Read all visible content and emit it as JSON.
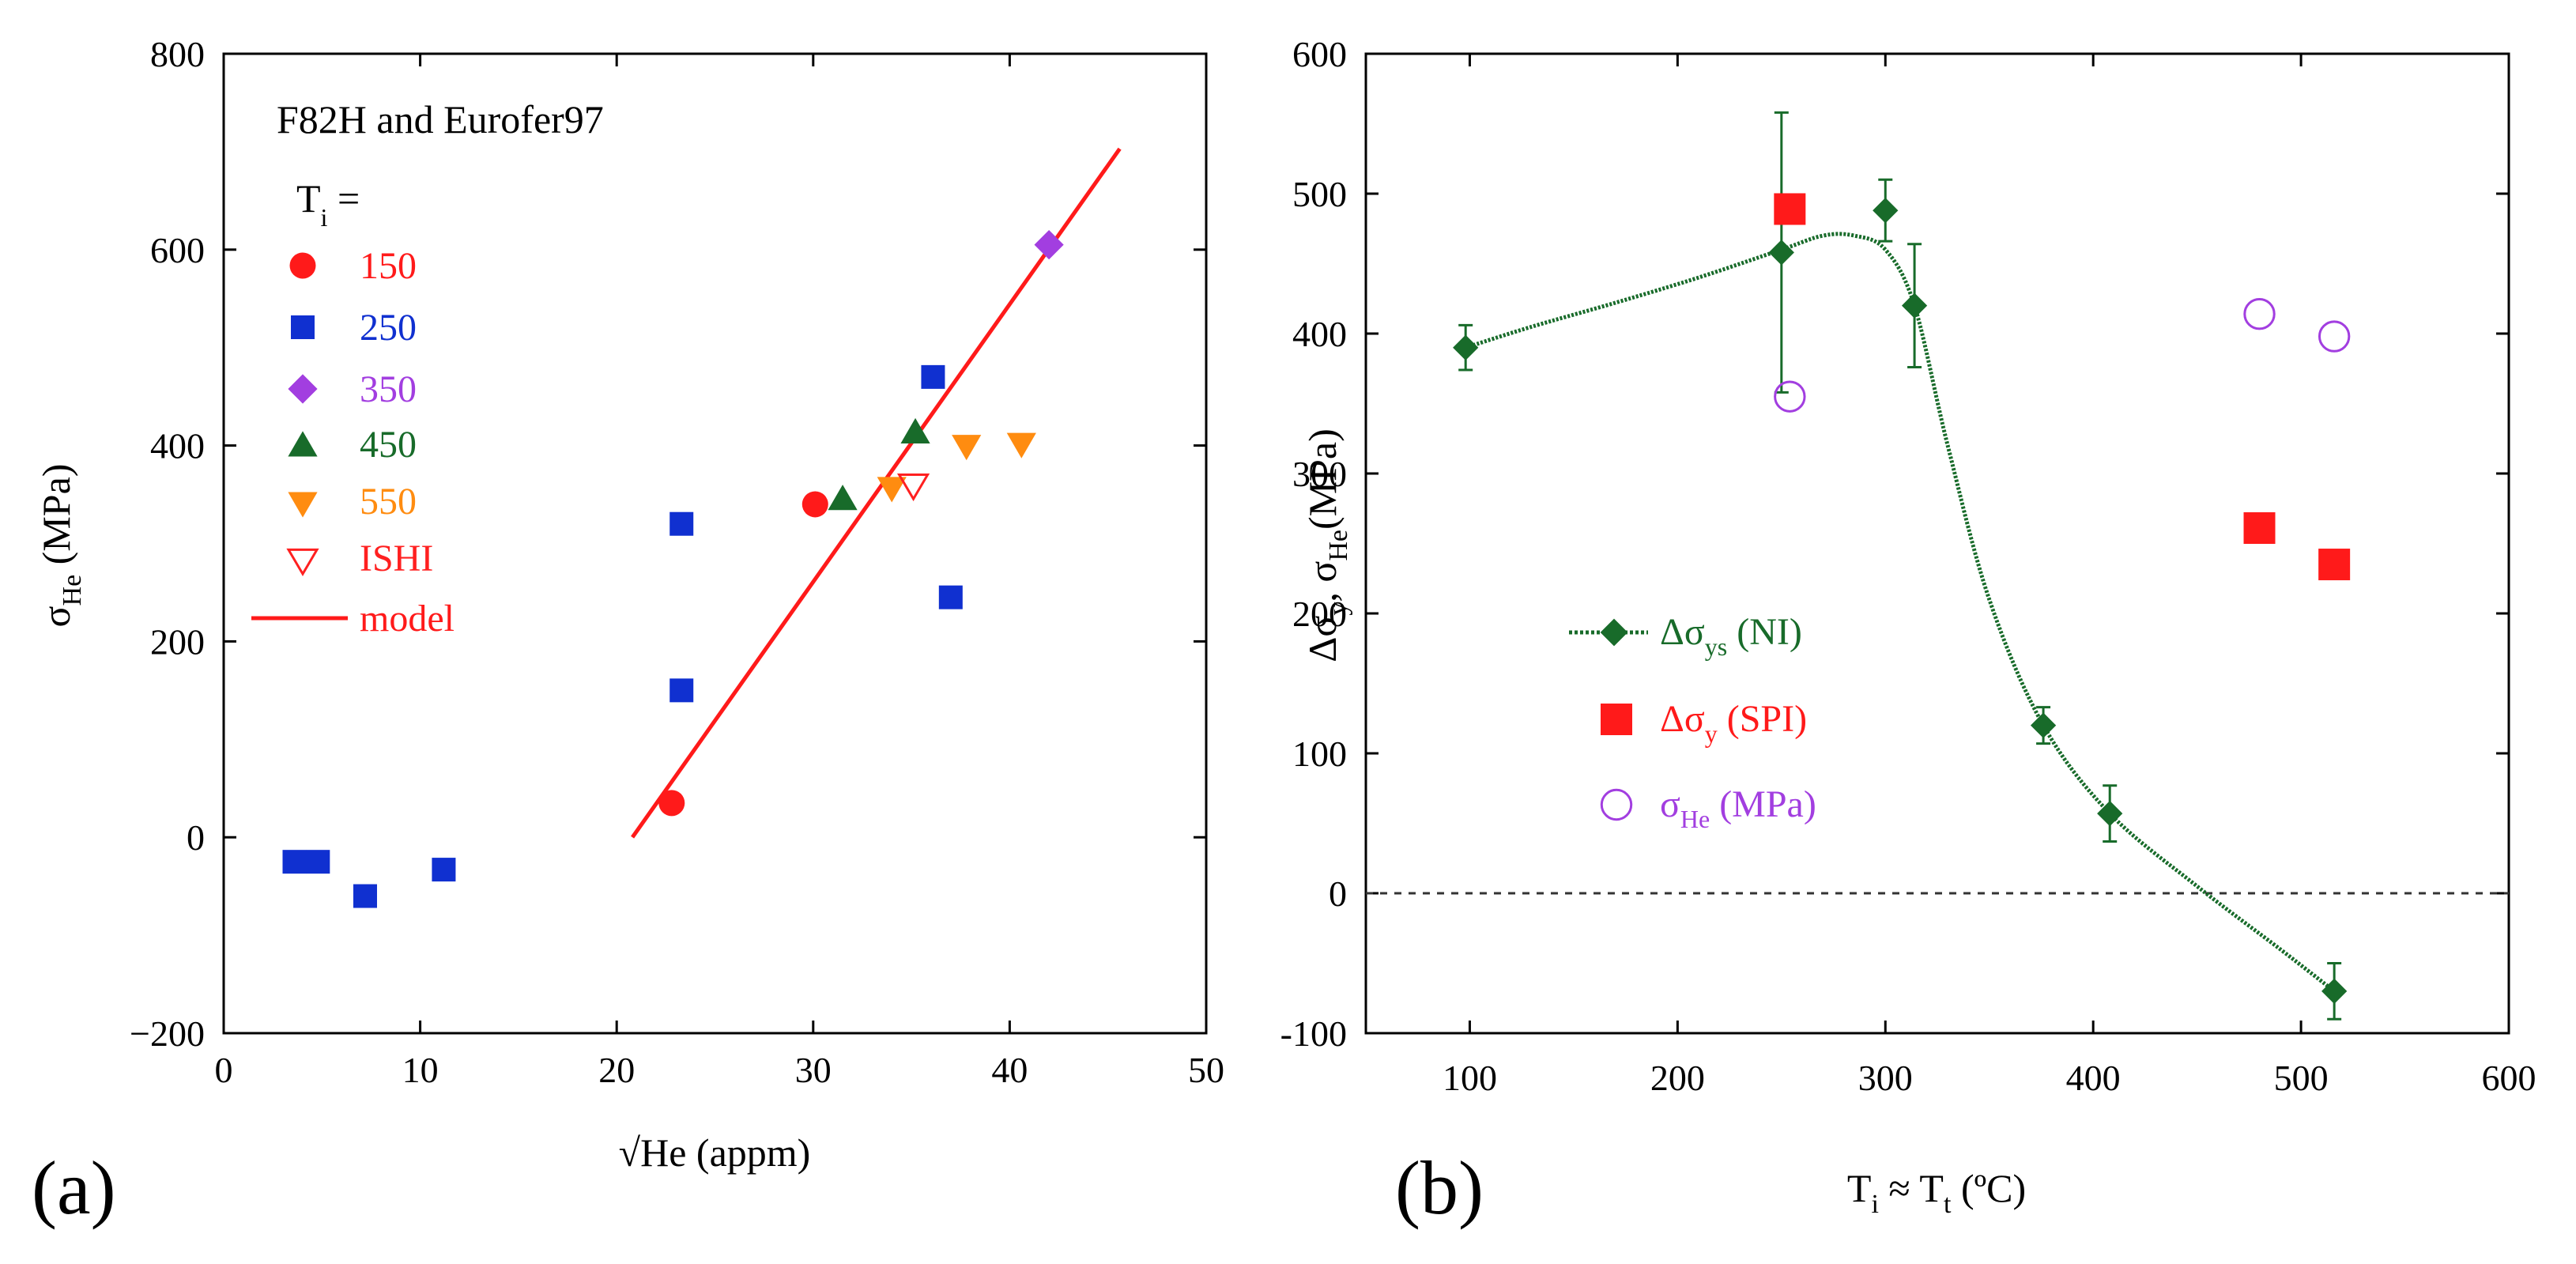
{
  "chart_data": [
    {
      "type": "scatter",
      "panel_label": "(a)",
      "annotation": "F82H and Eurofer97",
      "legend_title": {
        "main": "T",
        "sub": "i",
        "suffix": " ="
      },
      "xlabel": "√He (appm)",
      "ylabel": {
        "main": "σ",
        "sub": "He",
        "suffix": " (MPa)"
      },
      "xlim": [
        0,
        50
      ],
      "ylim": [
        -200,
        800
      ],
      "xticks": [
        0,
        10,
        20,
        30,
        40,
        50
      ],
      "yticks": [
        -200,
        0,
        200,
        400,
        600,
        800
      ],
      "ytick_labels": [
        "−200",
        "0",
        "200",
        "400",
        "600",
        "800"
      ],
      "series": [
        {
          "name": "150",
          "marker": "circle",
          "color": "#ff1a1a",
          "x": [
            22.8,
            30.1
          ],
          "y": [
            35,
            340
          ]
        },
        {
          "name": "250",
          "marker": "square",
          "color": "#1030d0",
          "x": [
            3.6,
            4.8,
            7.2,
            11.2,
            23.3,
            23.3,
            36.1,
            37.0
          ],
          "y": [
            -25,
            -25,
            -60,
            -33,
            320,
            150,
            470,
            245
          ]
        },
        {
          "name": "350",
          "marker": "diamond",
          "color": "#a23ee0",
          "x": [
            42.0
          ],
          "y": [
            605
          ]
        },
        {
          "name": "450",
          "marker": "triangle-up",
          "color": "#186b2a",
          "x": [
            31.5,
            35.2
          ],
          "y": [
            345,
            413
          ]
        },
        {
          "name": "550",
          "marker": "triangle-down",
          "color": "#ff8c10",
          "x": [
            34.0,
            37.8,
            40.6
          ],
          "y": [
            357,
            400,
            402
          ]
        },
        {
          "name": "ISHI",
          "marker": "triangle-down-open",
          "color": "#ff2020",
          "x": [
            35.1
          ],
          "y": [
            360
          ]
        },
        {
          "name": "model",
          "marker": "line",
          "color": "#ff1a1a",
          "x": [
            20.8,
            45.6
          ],
          "y": [
            0,
            703
          ]
        }
      ]
    },
    {
      "type": "scatter",
      "panel_label": "(b)",
      "xlabel": {
        "a": "T",
        "a_sub": "i",
        "mid": " ≈ T",
        "b_sub": "t",
        "end": " (ºC)"
      },
      "ylabel": {
        "p1": "Δσ",
        "s1": "y",
        "p2": ", σ",
        "s2": "He",
        "p3": "(MPa)"
      },
      "xlim": [
        50,
        600
      ],
      "ylim": [
        -100,
        600
      ],
      "xticks": [
        100,
        200,
        300,
        400,
        500,
        600
      ],
      "yticks": [
        -100,
        0,
        100,
        200,
        300,
        400,
        500,
        600
      ],
      "ytick_labels": [
        "-100",
        "0",
        "100",
        "200",
        "300",
        "400",
        "500",
        "600"
      ],
      "reference_line_y": 0,
      "series": [
        {
          "name": "Δσys (NI)",
          "label": {
            "main": "Δσ",
            "sub": "ys",
            "suffix": " (NI)"
          },
          "marker": "diamond",
          "color": "#186b2a",
          "x": [
            98,
            250,
            300,
            314,
            376,
            408,
            516
          ],
          "y": [
            390,
            458,
            488,
            420,
            120,
            57,
            -70
          ],
          "err": [
            16,
            100,
            22,
            44,
            13,
            20,
            20
          ]
        },
        {
          "name": "Δσy (SPI)",
          "label": {
            "main": "Δσ",
            "sub": "y",
            "suffix": " (SPI)"
          },
          "marker": "square",
          "color": "#ff1a1a",
          "x": [
            254,
            480,
            516
          ],
          "y": [
            489,
            261,
            235
          ]
        },
        {
          "name": "σHe (MPa)",
          "label": {
            "main": "σ",
            "sub": "He",
            "suffix": " (MPa)"
          },
          "marker": "circle-open",
          "color": "#a23ee0",
          "x": [
            254,
            480,
            516
          ],
          "y": [
            355,
            414,
            398
          ]
        }
      ],
      "fit_curve": {
        "x": [
          98,
          130,
          170,
          210,
          250,
          270,
          285,
          300,
          314,
          330,
          350,
          376,
          408,
          450,
          490,
          516
        ],
        "y": [
          390,
          405,
          422,
          440,
          460,
          470,
          470,
          460,
          420,
          320,
          210,
          120,
          57,
          5,
          -40,
          -70
        ]
      }
    }
  ]
}
